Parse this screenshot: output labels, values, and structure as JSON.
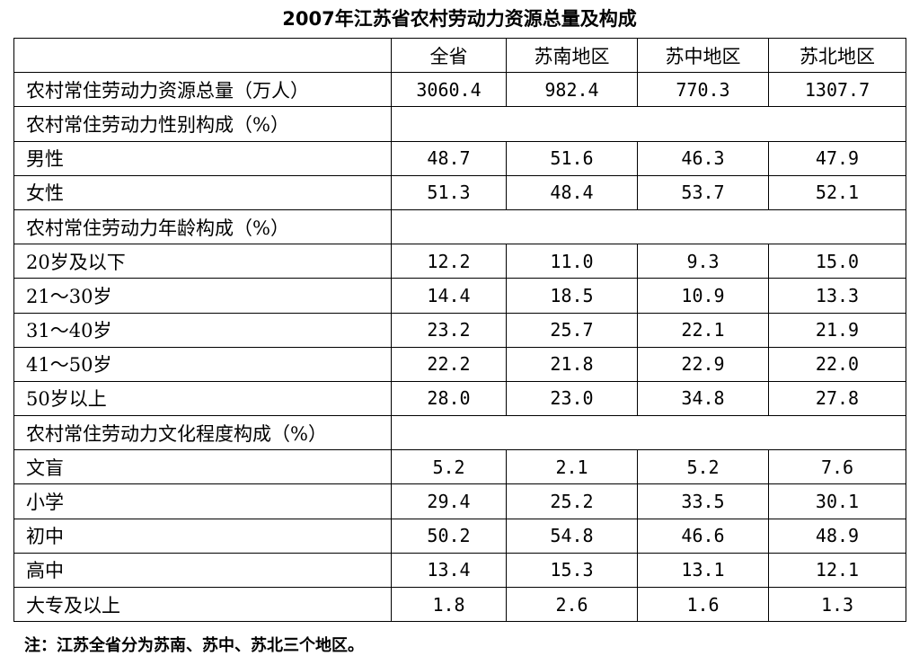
{
  "title": "2007年江苏省农村劳动力资源总量及构成",
  "columns": [
    "",
    "全省",
    "苏南地区",
    "苏中地区",
    "苏北地区"
  ],
  "rows": [
    {
      "label": "农村常住劳动力资源总量（万人）",
      "values": [
        "3060.4",
        "982.4",
        "770.3",
        "1307.7"
      ]
    },
    {
      "label": "农村常住劳动力性别构成（%）",
      "values": []
    },
    {
      "label": "男性",
      "values": [
        "48.7",
        "51.6",
        "46.3",
        "47.9"
      ]
    },
    {
      "label": "女性",
      "values": [
        "51.3",
        "48.4",
        "53.7",
        "52.1"
      ]
    },
    {
      "label": "农村常住劳动力年龄构成（%）",
      "values": []
    },
    {
      "label": "20岁及以下",
      "values": [
        "12.2",
        "11.0",
        "9.3",
        "15.0"
      ]
    },
    {
      "label": "21～30岁",
      "values": [
        "14.4",
        "18.5",
        "10.9",
        "13.3"
      ]
    },
    {
      "label": "31～40岁",
      "values": [
        "23.2",
        "25.7",
        "22.1",
        "21.9"
      ]
    },
    {
      "label": "41～50岁",
      "values": [
        "22.2",
        "21.8",
        "22.9",
        "22.0"
      ]
    },
    {
      "label": "50岁以上",
      "values": [
        "28.0",
        "23.0",
        "34.8",
        "27.8"
      ]
    },
    {
      "label": "农村常住劳动力文化程度构成（%）",
      "values": []
    },
    {
      "label": "文盲",
      "values": [
        "5.2",
        "2.1",
        "5.2",
        "7.6"
      ]
    },
    {
      "label": "小学",
      "values": [
        "29.4",
        "25.2",
        "33.5",
        "30.1"
      ]
    },
    {
      "label": "初中",
      "values": [
        "50.2",
        "54.8",
        "46.6",
        "48.9"
      ]
    },
    {
      "label": "高中",
      "values": [
        "13.4",
        "15.3",
        "13.1",
        "12.1"
      ]
    },
    {
      "label": "大专及以上",
      "values": [
        "1.8",
        "2.6",
        "1.6",
        "1.3"
      ]
    }
  ],
  "note": "注：江苏全省分为苏南、苏中、苏北三个地区。"
}
